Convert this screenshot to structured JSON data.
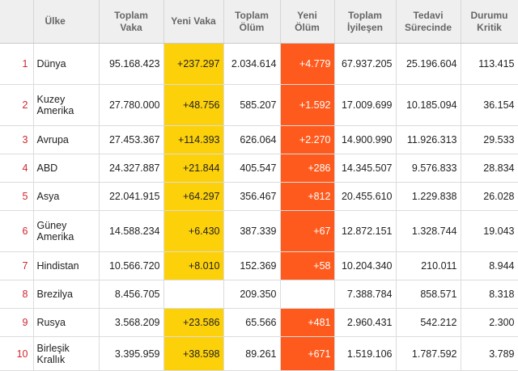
{
  "headers": {
    "rank": "",
    "country": "Ülke",
    "total_cases": "Toplam Vaka",
    "new_cases": "Yeni Vaka",
    "total_deaths": "Toplam Ölüm",
    "new_deaths": "Yeni Ölüm",
    "recovered": "Toplam İyileşen",
    "active": "Tedavi Sürecinde",
    "critical": "Durumu Kritik"
  },
  "rows": [
    {
      "rank": "1",
      "country": "Dünya",
      "total_cases": "95.168.423",
      "new_cases": "+237.297",
      "total_deaths": "2.034.614",
      "new_deaths": "+4.779",
      "recovered": "67.937.205",
      "active": "25.196.604",
      "critical": "113.415"
    },
    {
      "rank": "2",
      "country": "Kuzey Amerika",
      "total_cases": "27.780.000",
      "new_cases": "+48.756",
      "total_deaths": "585.207",
      "new_deaths": "+1.592",
      "recovered": "17.009.699",
      "active": "10.185.094",
      "critical": "36.154"
    },
    {
      "rank": "3",
      "country": "Avrupa",
      "total_cases": "27.453.367",
      "new_cases": "+114.393",
      "total_deaths": "626.064",
      "new_deaths": "+2.270",
      "recovered": "14.900.990",
      "active": "11.926.313",
      "critical": "29.533"
    },
    {
      "rank": "4",
      "country": "ABD",
      "total_cases": "24.327.887",
      "new_cases": "+21.844",
      "total_deaths": "405.547",
      "new_deaths": "+286",
      "recovered": "14.345.507",
      "active": "9.576.833",
      "critical": "28.834"
    },
    {
      "rank": "5",
      "country": "Asya",
      "total_cases": "22.041.915",
      "new_cases": "+64.297",
      "total_deaths": "356.467",
      "new_deaths": "+812",
      "recovered": "20.455.610",
      "active": "1.229.838",
      "critical": "26.028"
    },
    {
      "rank": "6",
      "country": "Güney Amerika",
      "total_cases": "14.588.234",
      "new_cases": "+6.430",
      "total_deaths": "387.339",
      "new_deaths": "+67",
      "recovered": "12.872.151",
      "active": "1.328.744",
      "critical": "19.043"
    },
    {
      "rank": "7",
      "country": "Hindistan",
      "total_cases": "10.566.720",
      "new_cases": "+8.010",
      "total_deaths": "152.369",
      "new_deaths": "+58",
      "recovered": "10.204.340",
      "active": "210.011",
      "critical": "8.944"
    },
    {
      "rank": "8",
      "country": "Brezilya",
      "total_cases": "8.456.705",
      "new_cases": "",
      "total_deaths": "209.350",
      "new_deaths": "",
      "recovered": "7.388.784",
      "active": "858.571",
      "critical": "8.318"
    },
    {
      "rank": "9",
      "country": "Rusya",
      "total_cases": "3.568.209",
      "new_cases": "+23.586",
      "total_deaths": "65.566",
      "new_deaths": "+481",
      "recovered": "2.960.431",
      "active": "542.212",
      "critical": "2.300"
    },
    {
      "rank": "10",
      "country": "Birleşik Krallık",
      "total_cases": "3.395.959",
      "new_cases": "+38.598",
      "total_deaths": "89.261",
      "new_deaths": "+671",
      "recovered": "1.519.106",
      "active": "1.787.592",
      "critical": "3.789"
    }
  ]
}
